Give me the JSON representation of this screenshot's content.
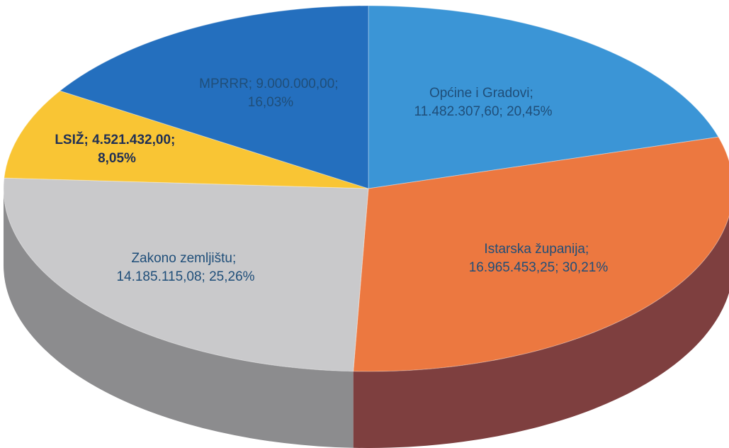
{
  "chart_data": {
    "type": "pie",
    "slices": [
      {
        "category": "Općine i Gradovi",
        "value": 11482307.6,
        "value_label": "11.482.307,60",
        "percent_label": "20,45%",
        "color": "#3b95d6",
        "dark": "#25628f"
      },
      {
        "category": "Istarska županija",
        "value": 16965453.25,
        "value_label": "16.965.453,25",
        "percent_label": "30,21%",
        "color": "#ec7840",
        "dark": "#7e3f3f"
      },
      {
        "category": "Zakon o zemljištu",
        "value": 14185115.08,
        "value_label": "14.185.115,08",
        "percent_label": "25,26%",
        "color": "#c9c9cb",
        "dark": "#8c8c8e"
      },
      {
        "category": "LSIŽ",
        "value": 4521432.0,
        "value_label": "4.521.432,00",
        "percent_label": "8,05%",
        "color": "#f9c534",
        "dark": "#b58e22"
      },
      {
        "category": "MPRRR",
        "value": 9000000.0,
        "value_label": "9.000.000,00",
        "percent_label": "16,03%",
        "color": "#246fbe",
        "dark": "#17497e"
      }
    ],
    "legend": "none",
    "style": "3d-pie",
    "label_text_colors": [
      "#1f4e79",
      "#1f4e79",
      "#1f4e79",
      "#1f2f55",
      "#1f4e79"
    ]
  },
  "labels": [
    {
      "line1": "Općine i Gradovi;",
      "line2": "11.482.307,60; 20,45%"
    },
    {
      "line1": "Istarska županija;",
      "line2": "16.965.453,25; 30,21%"
    },
    {
      "line1": "Zakono zemljištu;",
      "line2": "14.185.115,08; 25,26%"
    },
    {
      "line1": "LSIŽ; 4.521.432,00;",
      "line2": "8,05%"
    },
    {
      "line1": "MPRRR; 9.000.000,00;",
      "line2": "16,03%"
    }
  ]
}
